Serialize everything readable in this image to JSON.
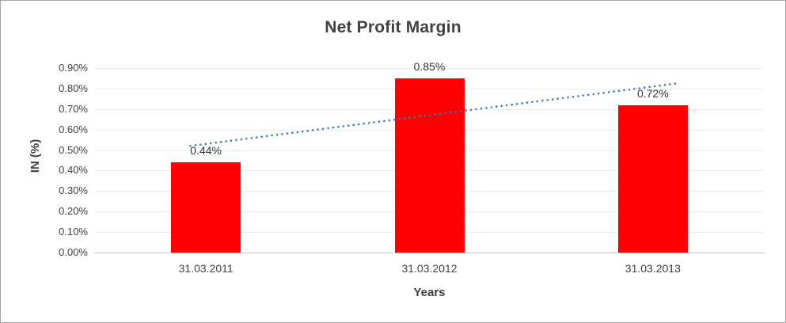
{
  "chart_data": {
    "type": "bar",
    "title": "Net Profit Margin",
    "xlabel": "Years",
    "ylabel": "IN (%)",
    "categories": [
      "31.03.2011",
      "31.03.2012",
      "31.03.2013"
    ],
    "values": [
      0.44,
      0.85,
      0.72
    ],
    "data_labels": [
      "0.44%",
      "0.85%",
      "0.72%"
    ],
    "ylim": [
      0,
      0.9
    ],
    "ytick_step": 0.1,
    "ytick_labels": [
      "0.00%",
      "0.10%",
      "0.20%",
      "0.30%",
      "0.40%",
      "0.50%",
      "0.60%",
      "0.70%",
      "0.80%",
      "0.90%"
    ],
    "bar_color": "#ff0000",
    "grid": true,
    "legend": false,
    "trendline": {
      "type": "linear",
      "style": "dotted",
      "color": "#4472c4"
    }
  }
}
